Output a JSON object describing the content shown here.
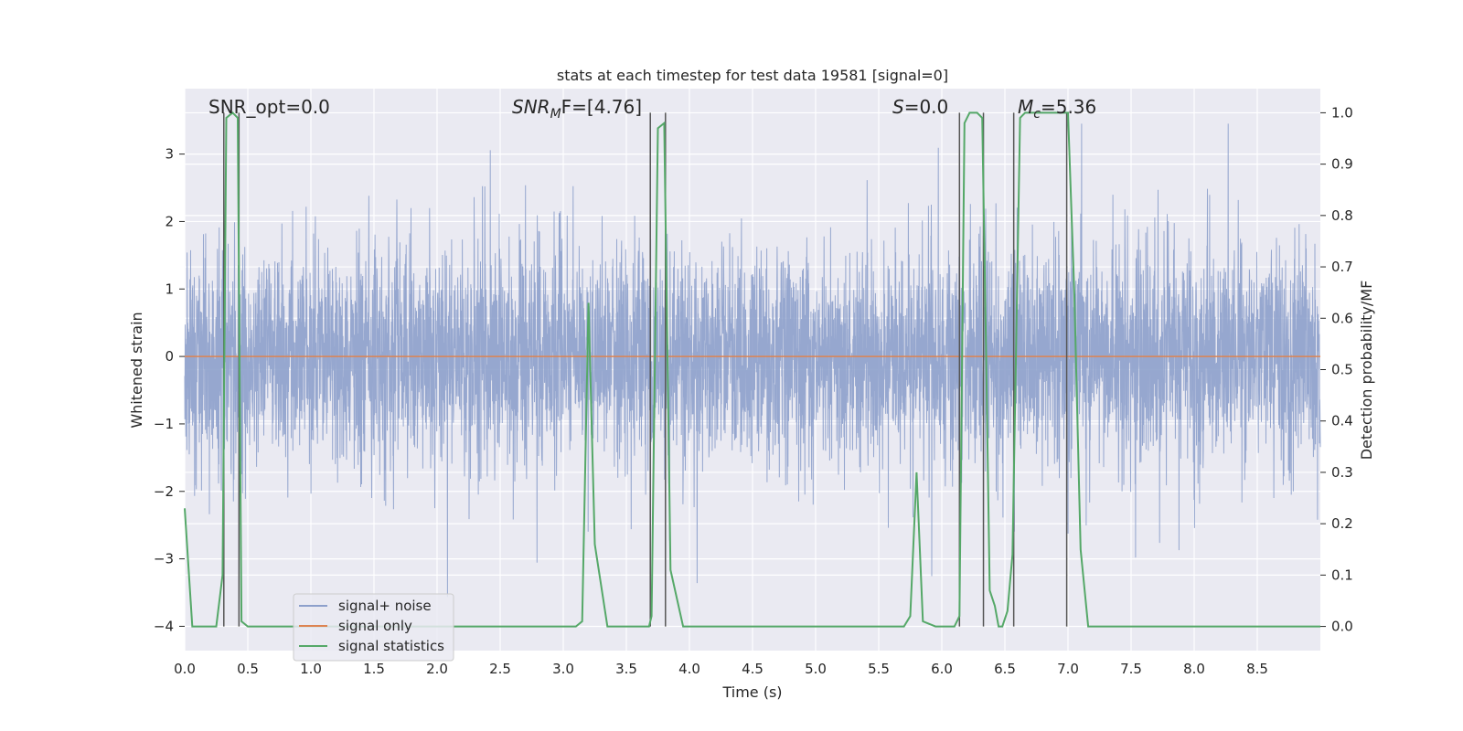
{
  "chart_data": {
    "type": "line",
    "title": "stats at each timestep for test data 19581 [signal=0]",
    "xlabel": "Time (s)",
    "ylabel": "Whitened strain",
    "y2label": "Detection probability/MF",
    "xlim": [
      0.0,
      9.0
    ],
    "ylim": [
      -4.36,
      3.97
    ],
    "y2lim": [
      -0.047,
      1.047
    ],
    "xticks": [
      "0.0",
      "0.5",
      "1.0",
      "1.5",
      "2.0",
      "2.5",
      "3.0",
      "3.5",
      "4.0",
      "4.5",
      "5.0",
      "5.5",
      "6.0",
      "6.5",
      "7.0",
      "7.5",
      "8.0",
      "8.5"
    ],
    "yticks": [
      "3",
      "2",
      "1",
      "0",
      "−1",
      "−2",
      "−3",
      "−4"
    ],
    "y2ticks": [
      "1.0",
      "0.9",
      "0.8",
      "0.7",
      "0.6",
      "0.5",
      "0.4",
      "0.3",
      "0.2",
      "0.1",
      "0.0"
    ],
    "grid": true,
    "legend_position": "lower-left",
    "annotations": {
      "snr_opt": "SNR_opt=0.0",
      "snr_mf_main": "SNR",
      "snr_mf_sub": "M",
      "snr_mf_rest": "F=[4.76]",
      "s_main": "S",
      "s_rest": "=0.0",
      "mc_main": "M",
      "mc_sub": "c",
      "mc_rest": "=5.36"
    },
    "series": [
      {
        "name": "signal+ noise",
        "color": "#8da0cb",
        "description": "whitened noise, roughly within ±2 with spikes to about ±3.5",
        "noise_seed": 19581
      },
      {
        "name": "signal only",
        "color": "#dd8452",
        "x": [
          0.0,
          9.0
        ],
        "y": [
          0.0,
          0.0
        ]
      },
      {
        "name": "signal statistics",
        "color": "#55a868",
        "axis": "right",
        "x": [
          0.0,
          0.06,
          0.25,
          0.3,
          0.33,
          0.38,
          0.42,
          0.45,
          0.5,
          3.1,
          3.15,
          3.2,
          3.25,
          3.35,
          3.5,
          3.68,
          3.7,
          3.75,
          3.8,
          3.85,
          3.95,
          4.15,
          4.25,
          5.7,
          5.75,
          5.8,
          5.85,
          5.95,
          6.1,
          6.14,
          6.18,
          6.22,
          6.25,
          6.28,
          6.32,
          6.35,
          6.38,
          6.42,
          6.45,
          6.48,
          6.52,
          6.56,
          6.62,
          6.66,
          6.7,
          6.9,
          6.98,
          7.0,
          7.05,
          7.1,
          7.16,
          9.0
        ],
        "y": [
          0.23,
          0.0,
          0.0,
          0.1,
          0.99,
          1.0,
          0.99,
          0.01,
          0.0,
          0.0,
          0.01,
          0.63,
          0.16,
          0.0,
          0.0,
          0.0,
          0.02,
          0.97,
          0.98,
          0.11,
          0.0,
          0.0,
          0.0,
          0.0,
          0.02,
          0.3,
          0.01,
          0.0,
          0.0,
          0.02,
          0.98,
          1.0,
          1.0,
          1.0,
          0.99,
          0.55,
          0.07,
          0.04,
          0.0,
          0.0,
          0.03,
          0.14,
          0.99,
          1.0,
          1.0,
          1.0,
          1.0,
          1.0,
          0.65,
          0.15,
          0.0,
          0.0
        ]
      }
    ],
    "vertical_lines": [
      0.31,
      0.43,
      3.69,
      3.81,
      6.14,
      6.33,
      6.57,
      6.99
    ]
  }
}
